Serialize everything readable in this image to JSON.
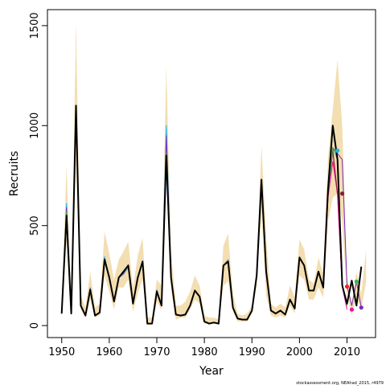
{
  "chart_data": {
    "type": "line",
    "xlabel": "Year",
    "ylabel": "Recruits",
    "xlim": [
      1947,
      2016
    ],
    "ylim": [
      -60,
      1580
    ],
    "x_ticks": [
      1950,
      1960,
      1970,
      1980,
      1990,
      2000,
      2010
    ],
    "y_ticks": [
      0,
      500,
      1000,
      1500
    ],
    "grid": false,
    "band_color": "#f3deb2",
    "years": [
      1950,
      1951,
      1952,
      1953,
      1954,
      1955,
      1956,
      1957,
      1958,
      1959,
      1960,
      1961,
      1962,
      1963,
      1964,
      1965,
      1966,
      1967,
      1968,
      1969,
      1970,
      1971,
      1972,
      1973,
      1974,
      1975,
      1976,
      1977,
      1978,
      1979,
      1980,
      1981,
      1982,
      1983,
      1984,
      1985,
      1986,
      1987,
      1988,
      1989,
      1990,
      1991,
      1992,
      1993,
      1994,
      1995,
      1996,
      1997,
      1998,
      1999,
      2000,
      2001,
      2002,
      2003,
      2004,
      2005,
      2006,
      2007,
      2008,
      2009,
      2010,
      2011,
      2012,
      2013,
      2014
    ],
    "band_upper": [
      90,
      800,
      120,
      1520,
      150,
      90,
      270,
      90,
      110,
      470,
      360,
      230,
      330,
      370,
      420,
      190,
      350,
      440,
      40,
      40,
      230,
      200,
      1300,
      380,
      100,
      100,
      120,
      170,
      250,
      200,
      50,
      40,
      40,
      30,
      400,
      460,
      160,
      60,
      50,
      60,
      100,
      290,
      900,
      450,
      110,
      90,
      110,
      90,
      200,
      140,
      430,
      380,
      230,
      210,
      340,
      260,
      840,
      1080,
      1330,
      1000,
      240,
      110,
      270,
      160,
      380
    ],
    "band_lower": [
      40,
      420,
      40,
      820,
      80,
      40,
      130,
      40,
      50,
      250,
      170,
      80,
      190,
      190,
      230,
      70,
      160,
      230,
      5,
      5,
      120,
      80,
      770,
      180,
      30,
      40,
      40,
      80,
      130,
      110,
      10,
      10,
      10,
      5,
      200,
      220,
      70,
      20,
      20,
      20,
      60,
      200,
      560,
      150,
      50,
      40,
      50,
      40,
      100,
      60,
      250,
      230,
      130,
      130,
      190,
      140,
      520,
      640,
      660,
      520,
      150,
      50,
      140,
      80,
      220
    ],
    "series": [
      {
        "color": "#000000",
        "values": [
          60,
          550,
          60,
          1100,
          100,
          50,
          180,
          50,
          65,
          330,
          240,
          120,
          240,
          270,
          300,
          110,
          240,
          320,
          10,
          10,
          170,
          100,
          850,
          240,
          55,
          50,
          55,
          100,
          175,
          145,
          20,
          10,
          15,
          10,
          300,
          320,
          90,
          35,
          30,
          30,
          75,
          250,
          730,
          270,
          75,
          60,
          75,
          55,
          130,
          85,
          340,
          300,
          175,
          175,
          270,
          190,
          680,
          1000,
          830,
          200,
          110,
          225,
          100,
          295
        ]
      },
      {
        "name": "",
        "color": "#ff1e1e",
        "values": [
          60,
          540,
          60,
          1080,
          100,
          50,
          180,
          50,
          65,
          330,
          240,
          120,
          240,
          260,
          300,
          110,
          240,
          320,
          10,
          10,
          170,
          100,
          820,
          240,
          55,
          50,
          55,
          100,
          175,
          145,
          20,
          10,
          15,
          10,
          300,
          330,
          90,
          35,
          30,
          30,
          75,
          250,
          700,
          270,
          75,
          60,
          75,
          55,
          130,
          85,
          340,
          300,
          175,
          175,
          270,
          190,
          660,
          870,
          650,
          195
        ]
      },
      {
        "color": "#1fb6e8",
        "values": [
          60,
          610,
          60,
          1070,
          100,
          50,
          190,
          50,
          65,
          345,
          245,
          120,
          240,
          255,
          290,
          110,
          245,
          325,
          10,
          10,
          180,
          100,
          1000,
          240,
          55,
          50,
          55,
          100,
          175,
          145,
          20,
          10,
          15,
          10,
          300,
          330,
          90,
          35,
          30,
          30,
          75,
          250,
          680,
          270,
          75,
          60,
          75,
          55,
          130,
          85,
          345,
          300,
          175,
          175,
          270,
          190,
          650,
          875
        ]
      },
      {
        "color": "#7a2bbd",
        "values": [
          60,
          590,
          60,
          1090,
          100,
          50,
          185,
          50,
          65,
          335,
          240,
          120,
          240,
          265,
          305,
          110,
          240,
          320,
          10,
          10,
          175,
          100,
          950,
          240,
          55,
          50,
          55,
          100,
          175,
          145,
          20,
          10,
          15,
          10,
          300,
          325,
          90,
          35,
          30,
          30,
          75,
          250,
          710,
          270,
          75,
          60,
          75,
          55,
          130,
          85,
          340,
          300,
          175,
          175,
          270,
          190,
          670,
          890,
          860,
          830,
          200,
          100,
          220,
          90
        ]
      },
      {
        "color": "#e8129c",
        "values": [
          60,
          560,
          60,
          1085,
          100,
          50,
          180,
          50,
          65,
          330,
          240,
          120,
          240,
          270,
          300,
          110,
          240,
          320,
          10,
          10,
          170,
          100,
          830,
          240,
          55,
          50,
          55,
          100,
          175,
          145,
          20,
          10,
          15,
          10,
          300,
          320,
          90,
          35,
          30,
          30,
          75,
          250,
          720,
          270,
          75,
          60,
          75,
          55,
          130,
          85,
          340,
          300,
          175,
          175,
          270,
          190,
          640,
          820,
          660,
          195,
          80
        ]
      },
      {
        "color": "#8b1a2e",
        "values": [
          60,
          565,
          60,
          1095,
          100,
          50,
          180,
          50,
          65,
          330,
          240,
          120,
          240,
          268,
          300,
          110,
          240,
          320,
          10,
          10,
          170,
          100,
          840,
          240,
          55,
          50,
          55,
          100,
          175,
          145,
          20,
          10,
          15,
          10,
          300,
          322,
          90,
          35,
          30,
          30,
          75,
          250,
          725,
          270,
          75,
          60,
          75,
          55,
          130,
          85,
          340,
          300,
          175,
          175,
          270,
          190,
          670,
          880,
          660
        ]
      },
      {
        "color": "#3cb44b",
        "values": [
          60,
          570,
          60,
          1090,
          100,
          50,
          182,
          50,
          65,
          332,
          240,
          120,
          240,
          268,
          300,
          110,
          240,
          320,
          10,
          10,
          172,
          100,
          860,
          240,
          55,
          50,
          55,
          100,
          175,
          145,
          20,
          10,
          15,
          10,
          300,
          324,
          90,
          35,
          30,
          30,
          75,
          250,
          722,
          270,
          75,
          60,
          75,
          55,
          130,
          85,
          340,
          300,
          175,
          175,
          270,
          190,
          675,
          890,
          830,
          200,
          100,
          220
        ]
      }
    ],
    "endpoints": [
      {
        "x": 2008,
        "y": 875,
        "color": "#1fb6e8"
      },
      {
        "x": 2009,
        "y": 660,
        "color": "#8b1a2e"
      },
      {
        "x": 2010,
        "y": 195,
        "color": "#ff1e1e"
      },
      {
        "x": 2011,
        "y": 80,
        "color": "#e8129c"
      },
      {
        "x": 2012,
        "y": 220,
        "color": "#3cb44b"
      },
      {
        "x": 2013,
        "y": 90,
        "color": "#7a2bbd"
      }
    ]
  },
  "credit": "stockassessment.org, NEAhad_2015, r4979"
}
